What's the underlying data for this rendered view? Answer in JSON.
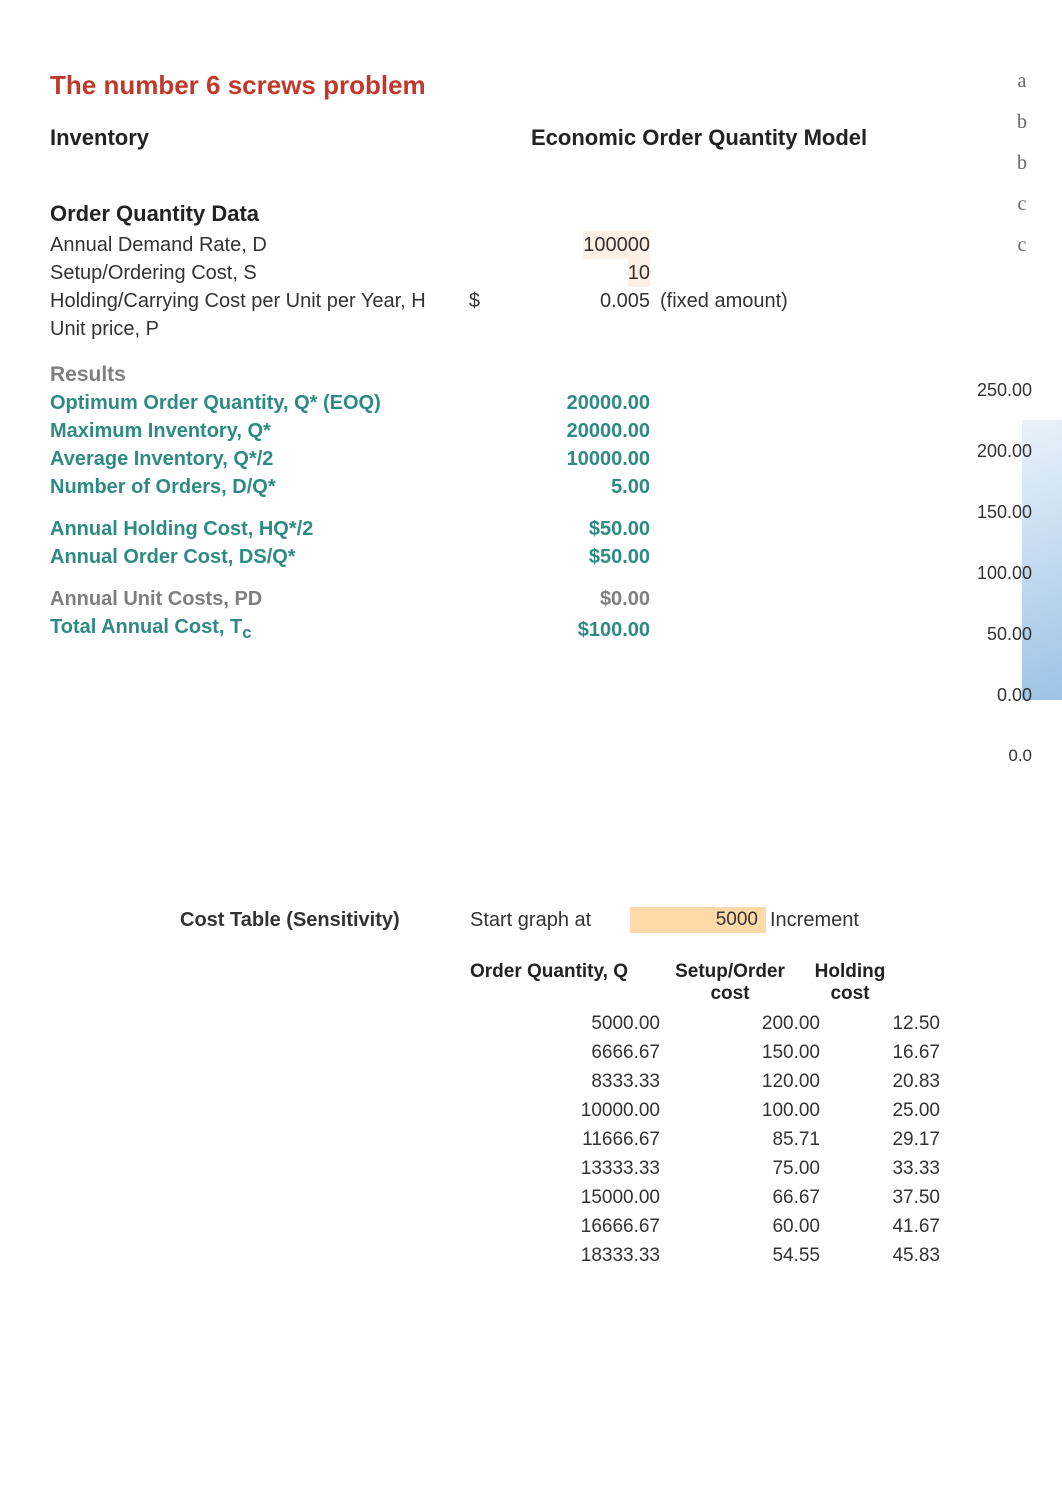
{
  "title": "The number 6 screws problem",
  "header": {
    "left": "Inventory",
    "right": "Economic Order Quantity Model"
  },
  "order_quantity": {
    "heading": "Order Quantity Data",
    "rows": [
      {
        "label": "Annual Demand Rate, D",
        "currency": "",
        "value": "100000",
        "note": ""
      },
      {
        "label": "Setup/Ordering Cost, S",
        "currency": "",
        "value": "10",
        "note": ""
      },
      {
        "label": "Holding/Carrying Cost per Unit per Year, H",
        "currency": "$",
        "value": "0.005",
        "note": "(fixed amount)"
      },
      {
        "label": "Unit price, P",
        "currency": "",
        "value": "",
        "note": ""
      }
    ]
  },
  "results": {
    "heading": "Results",
    "group1": [
      {
        "label": "Optimum Order Quantity, Q* (EOQ)",
        "value": "20000.00",
        "bold_dark": true
      },
      {
        "label": "Maximum Inventory, Q*",
        "value": "20000.00"
      },
      {
        "label": "Average Inventory, Q*/2",
        "value": "10000.00"
      },
      {
        "label": "Number of Orders, D/Q*",
        "value": "5.00"
      }
    ],
    "group2": [
      {
        "label": "Annual Holding Cost, HQ*/2",
        "value": "$50.00"
      },
      {
        "label": "Annual Order Cost, DS/Q*",
        "value": "$50.00"
      }
    ],
    "group3": [
      {
        "label": "Annual Unit Costs, PD",
        "value": "$0.00",
        "gray": true
      },
      {
        "label": "Total Annual Cost, T",
        "sub": "c",
        "value": "$100.00"
      }
    ]
  },
  "axis": {
    "ticks": [
      "250.00",
      "200.00",
      "150.00",
      "100.00",
      "50.00",
      "0.00"
    ],
    "origin_x": "0.0"
  },
  "right_icons": [
    "a",
    "b",
    "b",
    "c",
    "c"
  ],
  "sensitivity": {
    "title": "Cost Table (Sensitivity)",
    "start_label": "Start graph at",
    "start_value": "5000",
    "increment_label": "Increment",
    "columns": [
      "Order Quantity, Q",
      "Setup/Order cost",
      "Holding cost"
    ],
    "rows": [
      [
        "5000.00",
        "200.00",
        "12.50"
      ],
      [
        "6666.67",
        "150.00",
        "16.67"
      ],
      [
        "8333.33",
        "120.00",
        "20.83"
      ],
      [
        "10000.00",
        "100.00",
        "25.00"
      ],
      [
        "11666.67",
        "85.71",
        "29.17"
      ],
      [
        "13333.33",
        "75.00",
        "33.33"
      ],
      [
        "15000.00",
        "66.67",
        "37.50"
      ],
      [
        "16666.67",
        "60.00",
        "41.67"
      ],
      [
        "18333.33",
        "54.55",
        "45.83"
      ]
    ]
  },
  "colors": {
    "title": "#c0392b",
    "teal": "#2e8b83",
    "gray": "#7f7f7f",
    "highlight": "#ffd9a8",
    "chart_grad_top": "#dce9f6",
    "chart_grad_bot": "#5b9bd5"
  }
}
